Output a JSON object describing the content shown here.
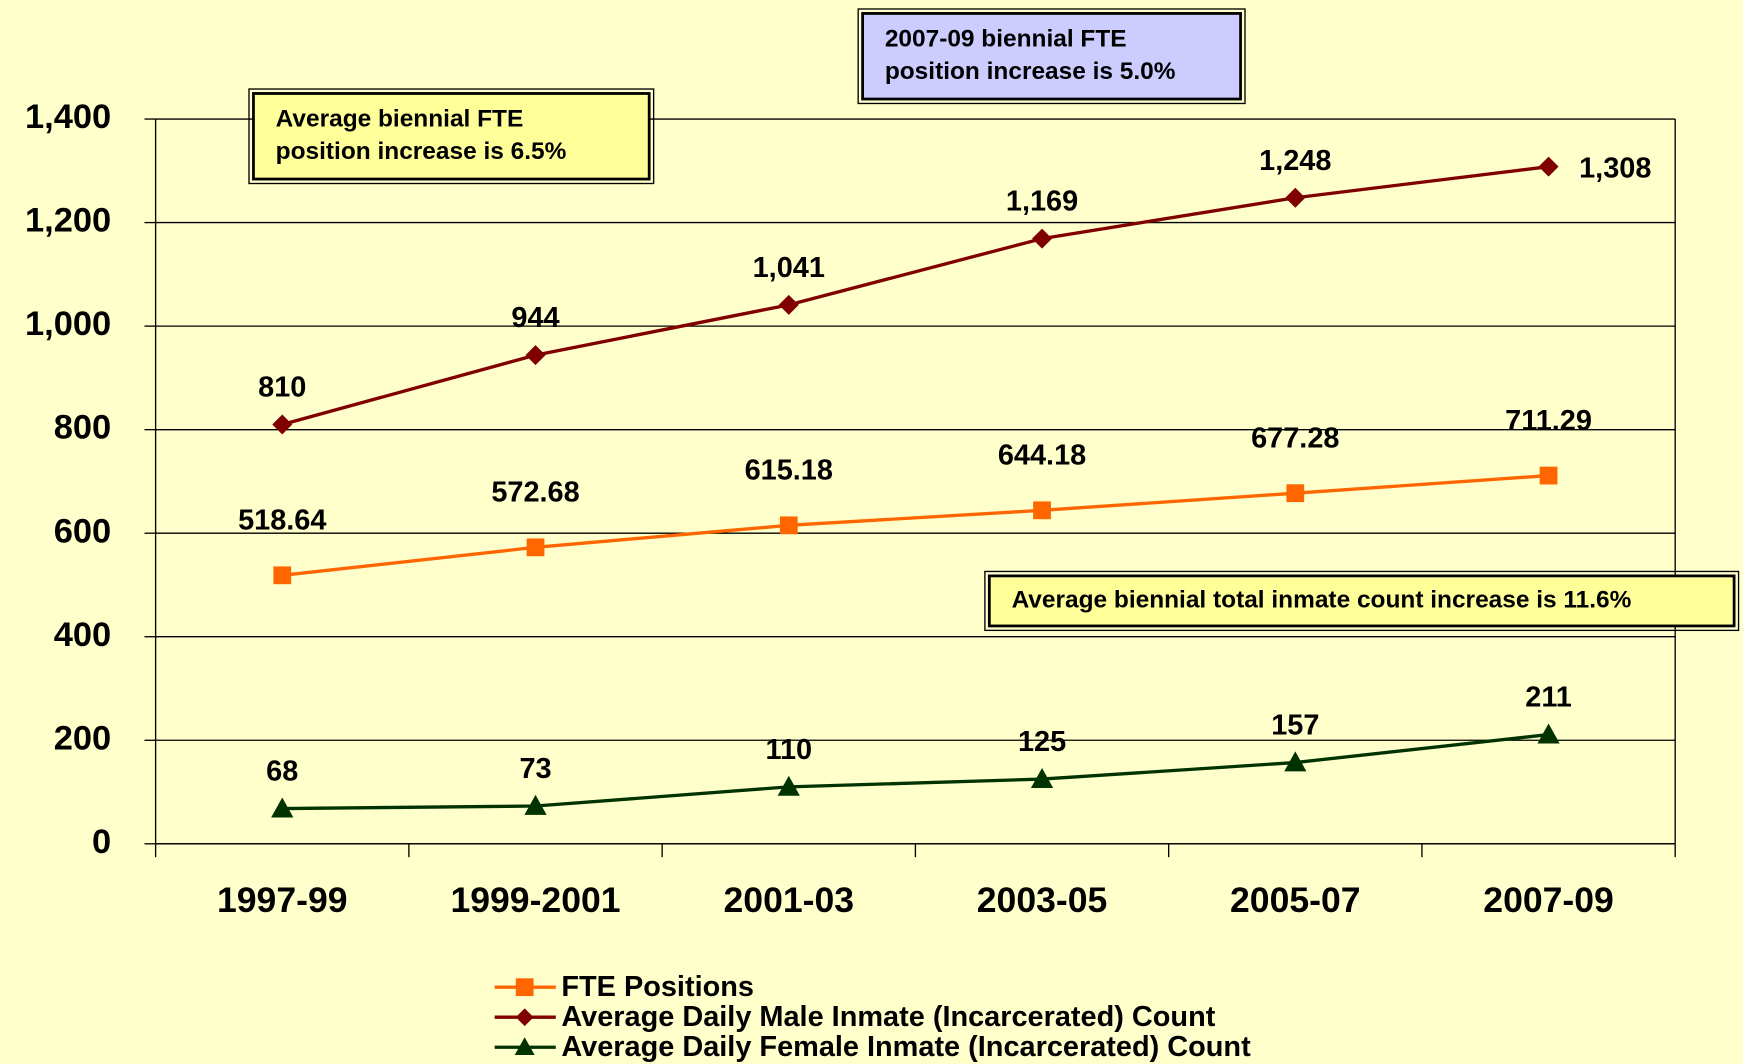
{
  "chart_data": {
    "type": "line",
    "categories": [
      "1997-99",
      "1999-2001",
      "2001-03",
      "2003-05",
      "2005-07",
      "2007-09"
    ],
    "ylim": [
      0,
      1400
    ],
    "yticks": [
      0,
      200,
      400,
      600,
      800,
      {
        "value": 1000,
        "label": "1,000"
      },
      {
        "value": 1200,
        "label": "1,200"
      },
      {
        "value": 1400,
        "label": "1,400"
      }
    ],
    "grid": true,
    "series": [
      {
        "name": "FTE Positions",
        "color": "#ff6600",
        "marker": "square",
        "values": [
          518.64,
          572.68,
          615.18,
          644.18,
          677.28,
          711.29
        ]
      },
      {
        "name": "Average Daily Male Inmate (Incarcerated) Count",
        "color": "#800000",
        "marker": "diamond",
        "values": [
          810,
          944,
          1041,
          1169,
          1248,
          1308
        ],
        "value_labels": [
          "810",
          "944",
          "1,041",
          "1,169",
          "1,248",
          "1,308"
        ]
      },
      {
        "name": "Average Daily Female Inmate (Incarcerated) Count",
        "color": "#003300",
        "marker": "triangle",
        "values": [
          68,
          73,
          110,
          125,
          157,
          211
        ]
      }
    ],
    "annotations": [
      {
        "lines": [
          "2007-09 biennial FTE",
          "position increase is 5.0%"
        ],
        "color": "#ccccff"
      },
      {
        "lines": [
          "Average biennial FTE",
          "position increase is 6.5%"
        ],
        "color": "#ffff99"
      },
      {
        "lines": [
          "Average biennial total inmate count increase is 11.6%"
        ],
        "color": "#ffff99"
      }
    ]
  }
}
